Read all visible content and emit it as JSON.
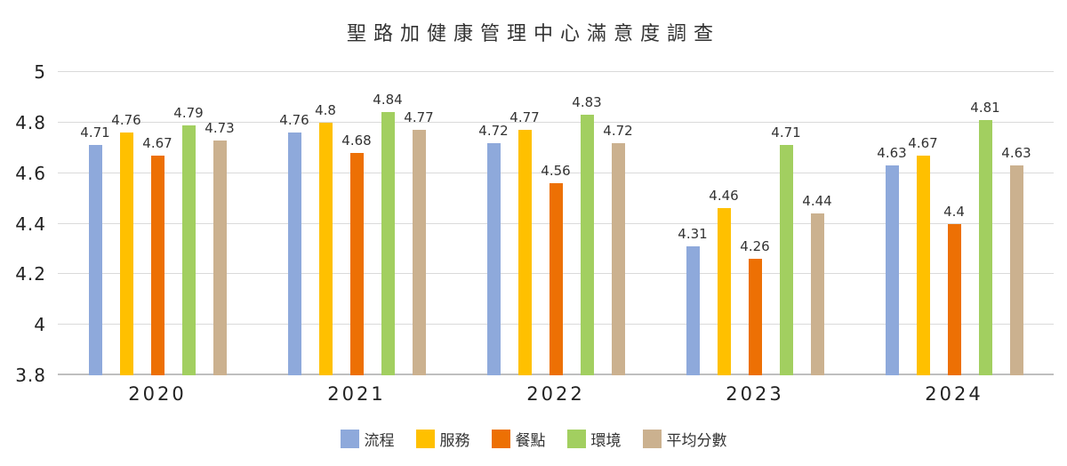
{
  "chart_data": {
    "type": "bar",
    "title": "聖路加健康管理中心滿意度調查",
    "categories": [
      "2020",
      "2021",
      "2022",
      "2023",
      "2024"
    ],
    "series": [
      {
        "name": "流程",
        "color": "#8EA9DB",
        "values": [
          4.71,
          4.76,
          4.72,
          4.31,
          4.63
        ]
      },
      {
        "name": "服務",
        "color": "#FFC000",
        "values": [
          4.76,
          4.8,
          4.77,
          4.46,
          4.67
        ]
      },
      {
        "name": "餐點",
        "color": "#ED7004",
        "values": [
          4.67,
          4.68,
          4.56,
          4.26,
          4.4
        ]
      },
      {
        "name": "環境",
        "color": "#A2CF60",
        "values": [
          4.79,
          4.84,
          4.83,
          4.71,
          4.81
        ]
      },
      {
        "name": "平均分數",
        "color": "#CBB18F",
        "values": [
          4.73,
          4.77,
          4.72,
          4.44,
          4.63
        ]
      }
    ],
    "ylim": [
      3.8,
      5
    ],
    "yticks": [
      5,
      4.8,
      4.6,
      4.4,
      4.2,
      4,
      3.8
    ],
    "grid": true,
    "legend_position": "bottom",
    "colors": {
      "gridline": "#dadada",
      "axis_line": "#bfbfbf",
      "text": "#333333"
    }
  }
}
